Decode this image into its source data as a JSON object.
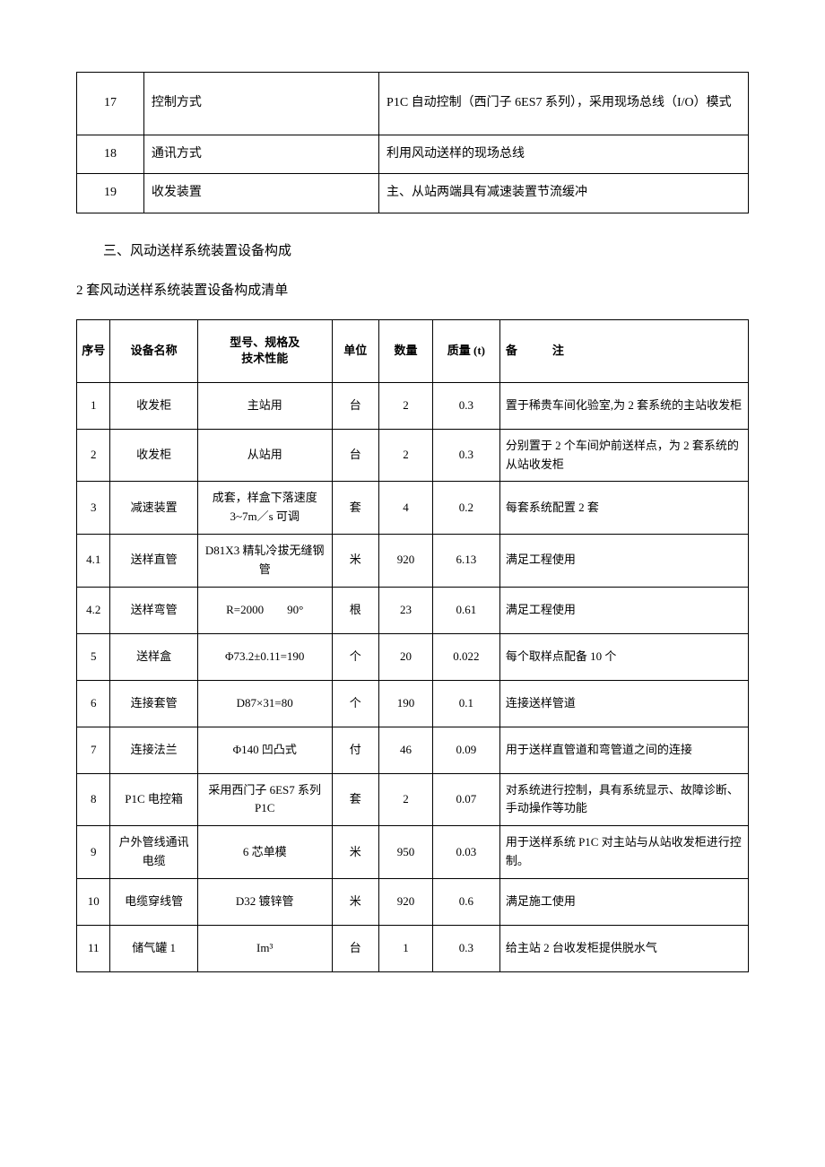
{
  "table1_rows": [
    {
      "num": "17",
      "label": "控制方式",
      "value": "P1C 自动控制（西门子 6ES7 系列），采用现场总线（I/O）模式",
      "tall": true
    },
    {
      "num": "18",
      "label": "通讯方式",
      "value": "利用风动送样的现场总线",
      "tall": false
    },
    {
      "num": "19",
      "label": "收发装置",
      "value": "主、从站两端具有减速装置节流缓冲",
      "tall": false
    }
  ],
  "section_heading": "三、风动送样系统装置设备构成",
  "list_heading": "2 套风动送样系统装置设备构成清单",
  "table2_headers": {
    "seq": "序号",
    "name": "设备名称",
    "spec_line1": "型号、规格及",
    "spec_line2": "技术性能",
    "unit": "单位",
    "qty": "数量",
    "mass": "质量 (t)",
    "note": "备　　　注"
  },
  "table2_rows": [
    {
      "seq": "1",
      "name": "收发柜",
      "spec": "主站用",
      "unit": "台",
      "qty": "2",
      "mass": "0.3",
      "note": "置于稀贵车间化验室,为 2 套系统的主站收发柜"
    },
    {
      "seq": "2",
      "name": "收发柜",
      "spec": "从站用",
      "unit": "台",
      "qty": "2",
      "mass": "0.3",
      "note": "分别置于 2 个车间炉前送样点，为 2 套系统的从站收发柜"
    },
    {
      "seq": "3",
      "name": "减速装置",
      "spec": "成套，样盒下落速度 3~7m／s 可调",
      "unit": "套",
      "qty": "4",
      "mass": "0.2",
      "note": "每套系统配置 2 套"
    },
    {
      "seq": "4.1",
      "name": "送样直管",
      "spec": "D81X3 精轧冷拔无缝钢管",
      "unit": "米",
      "qty": "920",
      "mass": "6.13",
      "note": "满足工程使用"
    },
    {
      "seq": "4.2",
      "name": "送样弯管",
      "spec": "R=2000　　90°",
      "unit": "根",
      "qty": "23",
      "mass": "0.61",
      "note": "满足工程使用"
    },
    {
      "seq": "5",
      "name": "送样盒",
      "spec": "Φ73.2±0.11=190",
      "unit": "个",
      "qty": "20",
      "mass": "0.022",
      "note": "每个取样点配备 10 个"
    },
    {
      "seq": "6",
      "name": "连接套管",
      "spec": "D87×31=80",
      "unit": "个",
      "qty": "190",
      "mass": "0.1",
      "note": "连接送样管道"
    },
    {
      "seq": "7",
      "name": "连接法兰",
      "spec": "Φ140 凹凸式",
      "unit": "付",
      "qty": "46",
      "mass": "0.09",
      "note": "用于送样直管道和弯管道之间的连接"
    },
    {
      "seq": "8",
      "name": "P1C 电控箱",
      "spec": "采用西门子 6ES7 系列 P1C",
      "unit": "套",
      "qty": "2",
      "mass": "0.07",
      "note": "对系统进行控制，具有系统显示、故障诊断、手动操作等功能"
    },
    {
      "seq": "9",
      "name": "户外管线通讯电缆",
      "spec": "6 芯单模",
      "unit": "米",
      "qty": "950",
      "mass": "0.03",
      "note": "用于送样系统 P1C 对主站与从站收发柜进行控制。"
    },
    {
      "seq": "10",
      "name": "电缆穿线管",
      "spec": "D32 镀锌管",
      "unit": "米",
      "qty": "920",
      "mass": "0.6",
      "note": "满足施工使用"
    },
    {
      "seq": "11",
      "name": "储气罐 1",
      "spec": "Im³",
      "unit": "台",
      "qty": "1",
      "mass": "0.3",
      "note": "给主站 2 台收发柜提供脱水气"
    }
  ],
  "colors": {
    "text": "#000000",
    "background": "#ffffff",
    "border": "#000000"
  }
}
